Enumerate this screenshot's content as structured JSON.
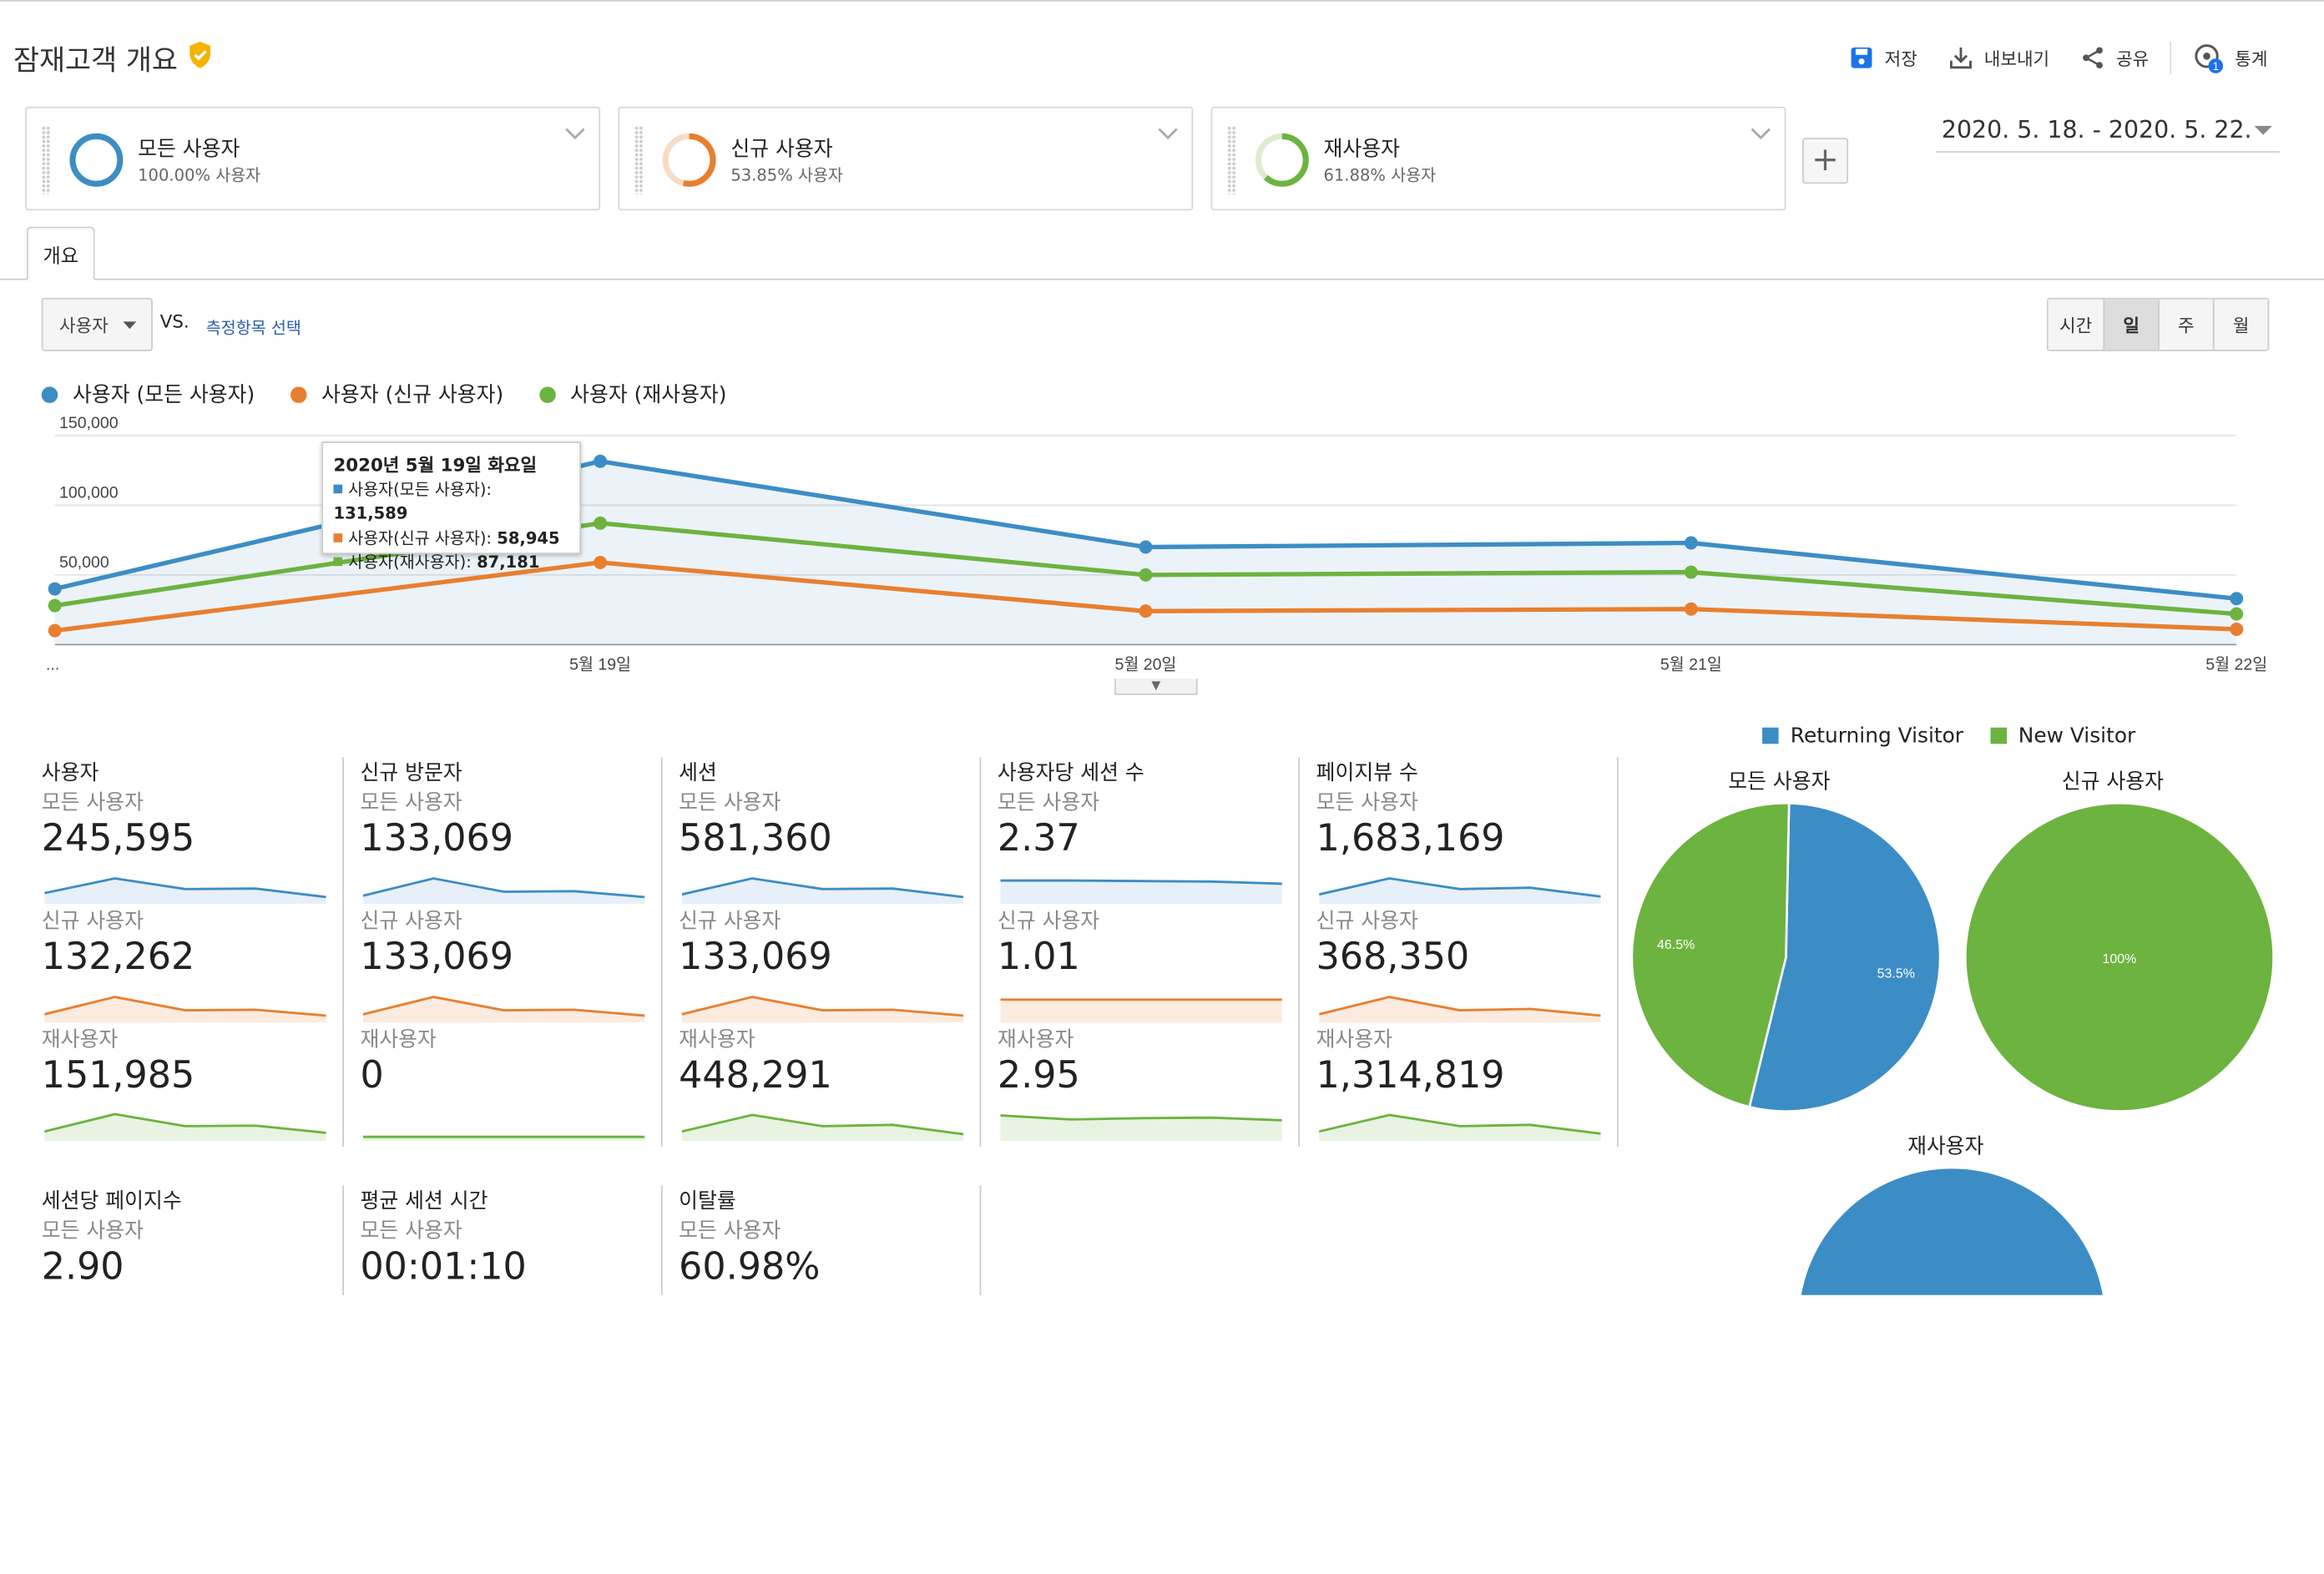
{
  "colors": {
    "all_users": "#3c8dc5",
    "new_users": "#e87f2f",
    "returning_users": "#6db33f",
    "accent": "#2a5db0",
    "verified": "#f4b400"
  },
  "header": {
    "title": "잠재고객 개요",
    "verified_icon": "shield-check-icon",
    "toolbar": {
      "save": "저장",
      "export": "내보내기",
      "share": "공유",
      "insights": "통계",
      "insights_badge": "1"
    }
  },
  "segments": [
    {
      "name": "모든 사용자",
      "pct": "100.00% 사용자",
      "fill": 1.0,
      "color": "#3c8dc5"
    },
    {
      "name": "신규 사용자",
      "pct": "53.85% 사용자",
      "fill": 0.5385,
      "color": "#e87f2f"
    },
    {
      "name": "재사용자",
      "pct": "61.88% 사용자",
      "fill": 0.6188,
      "color": "#6db33f"
    }
  ],
  "date_range": "2020. 5. 18. - 2020. 5. 22.",
  "tab": "개요",
  "metric_selector": {
    "value": "사용자",
    "vs": "VS.",
    "compare_link": "측정항목 선택"
  },
  "time_buttons": [
    {
      "label": "시간",
      "active": false
    },
    {
      "label": "일",
      "active": true
    },
    {
      "label": "주",
      "active": false
    },
    {
      "label": "월",
      "active": false
    }
  ],
  "chart_data": {
    "type": "line",
    "x": [
      "5월 18일",
      "5월 19일",
      "5월 20일",
      "5월 21일",
      "5월 22일"
    ],
    "x_tick_labels": [
      "...",
      "5월 19일",
      "5월 20일",
      "5월 21일",
      "5월 22일"
    ],
    "ylim": [
      0,
      150000
    ],
    "y_ticks": [
      "150,000",
      "100,000",
      "50,000"
    ],
    "legend_position": "top-left",
    "series": [
      {
        "name": "사용자 (모든 사용자)",
        "values": [
          40000,
          131589,
          70000,
          73000,
          33000
        ]
      },
      {
        "name": "사용자 (신규 사용자)",
        "values": [
          10000,
          58945,
          24000,
          25500,
          11000
        ]
      },
      {
        "name": "사용자 (재사용자)",
        "values": [
          28000,
          87181,
          50000,
          52000,
          22000
        ]
      }
    ],
    "tooltip": {
      "title": "2020년 5월 19일 화요일",
      "rows": [
        {
          "label": "사용자(모든 사용자): ",
          "value": "131,589"
        },
        {
          "label": "사용자(신규 사용자): ",
          "value": "58,945"
        },
        {
          "label": "사용자(재사용자): ",
          "value": "87,181"
        }
      ]
    }
  },
  "seg_labels": {
    "all": "모든 사용자",
    "new": "신규 사용자",
    "ret": "재사용자"
  },
  "metrics": [
    {
      "title": "사용자",
      "all": "245,595",
      "new": "132,262",
      "ret": "151,985",
      "spark": {
        "all": [
          0.35,
          0.9,
          0.5,
          0.52,
          0.2
        ],
        "new": [
          0.25,
          0.9,
          0.4,
          0.42,
          0.2
        ],
        "ret": [
          0.3,
          0.95,
          0.5,
          0.52,
          0.25
        ]
      }
    },
    {
      "title": "신규 방문자",
      "all": "133,069",
      "new": "133,069",
      "ret": "0",
      "spark": {
        "all": [
          0.25,
          0.9,
          0.4,
          0.42,
          0.2
        ],
        "new": [
          0.25,
          0.9,
          0.4,
          0.42,
          0.2
        ],
        "ret": [
          0.1,
          0.1,
          0.1,
          0.1,
          0.1
        ]
      }
    },
    {
      "title": "세션",
      "all": "581,360",
      "new": "133,069",
      "ret": "448,291",
      "spark": {
        "all": [
          0.3,
          0.9,
          0.5,
          0.52,
          0.2
        ],
        "new": [
          0.25,
          0.9,
          0.4,
          0.42,
          0.2
        ],
        "ret": [
          0.3,
          0.92,
          0.5,
          0.55,
          0.2
        ]
      }
    },
    {
      "title": "사용자당 세션 수",
      "all": "2.37",
      "new": "1.01",
      "ret": "2.95",
      "spark": {
        "all": [
          0.82,
          0.82,
          0.8,
          0.78,
          0.7
        ],
        "new": [
          0.8,
          0.8,
          0.8,
          0.8,
          0.8
        ],
        "ret": [
          0.9,
          0.75,
          0.8,
          0.82,
          0.72
        ]
      }
    },
    {
      "title": "페이지뷰 수",
      "all": "1,683,169",
      "new": "368,350",
      "ret": "1,314,819",
      "spark": {
        "all": [
          0.3,
          0.9,
          0.5,
          0.55,
          0.22
        ],
        "new": [
          0.25,
          0.9,
          0.4,
          0.45,
          0.2
        ],
        "ret": [
          0.3,
          0.92,
          0.5,
          0.55,
          0.22
        ]
      }
    },
    {
      "title": "세션당 페이지수",
      "all": "2.90"
    },
    {
      "title": "평균 세션 시간",
      "all": "00:01:10"
    },
    {
      "title": "이탈률",
      "all": "60.98%"
    }
  ],
  "pies": {
    "legend": [
      {
        "name": "Returning Visitor",
        "color": "#3c8dc5"
      },
      {
        "name": "New Visitor",
        "color": "#6db33f"
      }
    ],
    "charts": [
      {
        "title": "모든 사용자",
        "slices": [
          {
            "name": "Returning Visitor",
            "value": 53.5,
            "label": "53.5%"
          },
          {
            "name": "New Visitor",
            "value": 46.5,
            "label": "46.5%"
          }
        ]
      },
      {
        "title": "신규 사용자",
        "slices": [
          {
            "name": "New Visitor",
            "value": 100,
            "label": "100%"
          }
        ]
      },
      {
        "title": "재사용자",
        "slices": [
          {
            "name": "Returning Visitor",
            "value": 100,
            "label": ""
          }
        ]
      }
    ]
  }
}
